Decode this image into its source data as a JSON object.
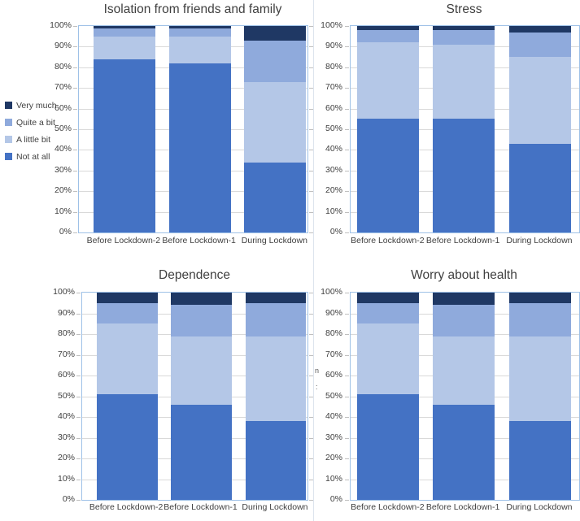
{
  "figure": {
    "background": "#ffffff",
    "layout": "2x2-grid-of-stacked-bar-charts"
  },
  "colors": {
    "very_much": "#1F3864",
    "quite_a_bit": "#8FAADC",
    "a_little_bit": "#B4C7E7",
    "not_at_all": "#4472C4",
    "gridline": "#D9D9D9",
    "plot_border": "#9EC1E7",
    "tick": "#BFBFBF",
    "text": "#404040"
  },
  "legend": {
    "position": "left-of-first-chart",
    "items": [
      {
        "label": "Very much",
        "color": "#1F3864"
      },
      {
        "label": "Quite a bit",
        "color": "#8FAADC"
      },
      {
        "label": "A little bit",
        "color": "#B4C7E7"
      },
      {
        "label": "Not at all",
        "color": "#4472C4"
      }
    ]
  },
  "y_axis": {
    "ticks_top_to_bottom": [
      "100%",
      "90%",
      "80%",
      "70%",
      "60%",
      "50%",
      "40%",
      "30%",
      "20%",
      "10%",
      "0%"
    ],
    "min": 0,
    "max": 100,
    "step": 10,
    "grid": true
  },
  "stray_fragments": {
    "a": "n",
    "b": ":"
  },
  "chart_data": [
    {
      "type": "bar",
      "variant": "stacked-100",
      "title": "Isolation from friends and family",
      "categories": [
        "Before Lockdown-2",
        "Before Lockdown-1",
        "During Lockdown"
      ],
      "series": [
        {
          "name": "Not at all",
          "color": "#4472C4",
          "values": [
            84,
            82,
            34
          ]
        },
        {
          "name": "A little bit",
          "color": "#B4C7E7",
          "values": [
            11,
            13,
            39
          ]
        },
        {
          "name": "Quite a bit",
          "color": "#8FAADC",
          "values": [
            4,
            4,
            20
          ]
        },
        {
          "name": "Very much",
          "color": "#1F3864",
          "values": [
            1,
            1,
            7
          ]
        }
      ],
      "xlabel": "",
      "ylabel": "",
      "ylim": [
        0,
        100
      ],
      "legend_visible": true
    },
    {
      "type": "bar",
      "variant": "stacked-100",
      "title": "Stress",
      "categories": [
        "Before Lockdown-2",
        "Before Lockdown-1",
        "During Lockdown"
      ],
      "series": [
        {
          "name": "Not at all",
          "color": "#4472C4",
          "values": [
            55,
            55,
            43
          ]
        },
        {
          "name": "A little bit",
          "color": "#B4C7E7",
          "values": [
            37,
            36,
            42
          ]
        },
        {
          "name": "Quite a bit",
          "color": "#8FAADC",
          "values": [
            6,
            7,
            12
          ]
        },
        {
          "name": "Very much",
          "color": "#1F3864",
          "values": [
            2,
            2,
            3
          ]
        }
      ],
      "xlabel": "",
      "ylabel": "",
      "ylim": [
        0,
        100
      ],
      "legend_visible": false
    },
    {
      "type": "bar",
      "variant": "stacked-100",
      "title": "Dependence",
      "categories": [
        "Before Lockdown-2",
        "Before Lockdown-1",
        "During Lockdown"
      ],
      "series": [
        {
          "name": "Not at all",
          "color": "#4472C4",
          "values": [
            51,
            46,
            38
          ]
        },
        {
          "name": "A little bit",
          "color": "#B4C7E7",
          "values": [
            34,
            33,
            41
          ]
        },
        {
          "name": "Quite a bit",
          "color": "#8FAADC",
          "values": [
            10,
            15,
            16
          ]
        },
        {
          "name": "Very much",
          "color": "#1F3864",
          "values": [
            5,
            6,
            5
          ]
        }
      ],
      "xlabel": "",
      "ylabel": "",
      "ylim": [
        0,
        100
      ],
      "legend_visible": false
    },
    {
      "type": "bar",
      "variant": "stacked-100",
      "title": "Worry about health",
      "categories": [
        "Before Lockdown-2",
        "Before Lockdown-1",
        "During Lockdown"
      ],
      "series": [
        {
          "name": "Not at all",
          "color": "#4472C4",
          "values": [
            51,
            46,
            38
          ]
        },
        {
          "name": "A little bit",
          "color": "#B4C7E7",
          "values": [
            34,
            33,
            41
          ]
        },
        {
          "name": "Quite a bit",
          "color": "#8FAADC",
          "values": [
            10,
            15,
            16
          ]
        },
        {
          "name": "Very much",
          "color": "#1F3864",
          "values": [
            5,
            6,
            5
          ]
        }
      ],
      "xlabel": "",
      "ylabel": "",
      "ylim": [
        0,
        100
      ],
      "legend_visible": false
    }
  ]
}
